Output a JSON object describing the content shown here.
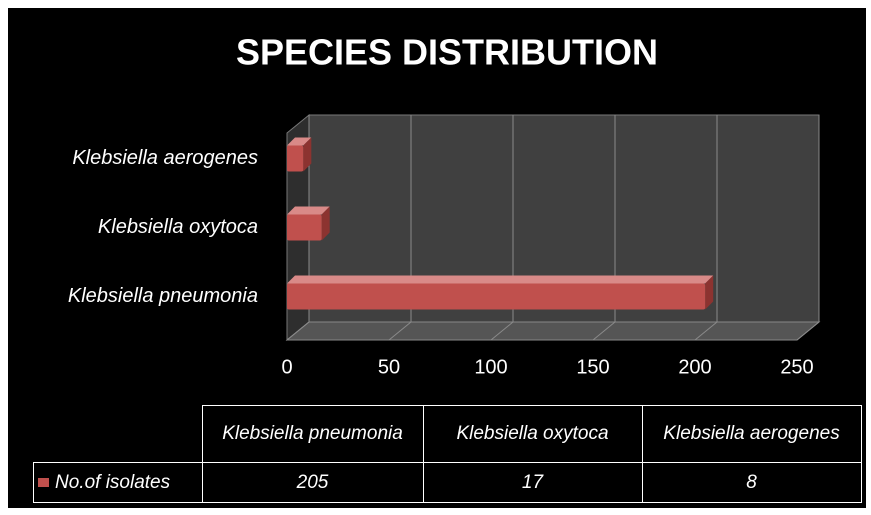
{
  "chart_data": {
    "type": "bar",
    "orientation": "horizontal",
    "title": "SPECIES DISTRIBUTION",
    "categories": [
      "Klebsiella pneumonia",
      "Klebsiella oxytoca",
      "Klebsiella aerogenes"
    ],
    "series": [
      {
        "name": "No.of isolates",
        "color": "#c0504d",
        "values": [
          205,
          17,
          8
        ]
      }
    ],
    "xlim": [
      0,
      250
    ],
    "xticks": [
      0,
      50,
      100,
      150,
      200,
      250
    ],
    "grid": true
  }
}
